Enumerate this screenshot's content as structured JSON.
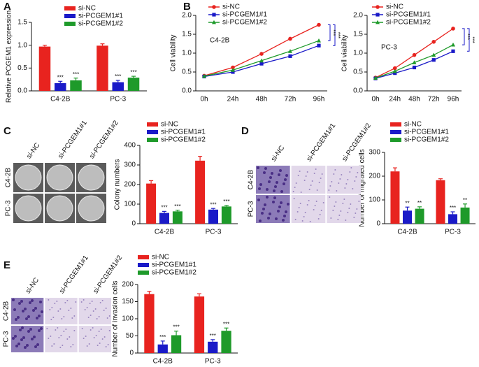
{
  "chart_data": [
    {
      "type": "bar",
      "panel": "A",
      "ylabel": "Relative PCGEM1 expression",
      "categories": [
        "C4-2B",
        "PC-3"
      ],
      "ylim": [
        0,
        1.5
      ],
      "yticks": [
        {
          "value": 0,
          "label": "0.0"
        },
        {
          "value": 0.5,
          "label": "0.5"
        },
        {
          "value": 1,
          "label": "1.0"
        },
        {
          "value": 1.5,
          "label": "1.5"
        }
      ],
      "series": [
        {
          "name": "si-NC",
          "color": "#e8231f",
          "values": [
            0.97,
            0.99
          ],
          "errors": [
            0.03,
            0.04
          ]
        },
        {
          "name": "si-PCGEM1#1",
          "color": "#1a1ac8",
          "values": [
            0.17,
            0.19
          ],
          "errors": [
            0.04,
            0.04
          ],
          "annotations": [
            "***",
            "***"
          ]
        },
        {
          "name": "si-PCGEM1#2",
          "color": "#1e9a2a",
          "values": [
            0.23,
            0.29
          ],
          "errors": [
            0.05,
            0.03
          ],
          "annotations": [
            "***",
            "***"
          ]
        }
      ]
    },
    {
      "type": "line",
      "panel": "B",
      "ylabel": "Cell viability",
      "inset_label": "C4-2B",
      "categories": [
        "0h",
        "24h",
        "48h",
        "72h",
        "96h"
      ],
      "ylim": [
        0,
        2
      ],
      "yticks": [
        {
          "value": 0,
          "label": "0.0"
        },
        {
          "value": 0.5,
          "label": "0.5"
        },
        {
          "value": 1,
          "label": "1.0"
        },
        {
          "value": 1.5,
          "label": "1.5"
        },
        {
          "value": 2,
          "label": "2.0"
        }
      ],
      "annotations": [
        "***",
        "***"
      ],
      "series": [
        {
          "name": "si-NC",
          "color": "#e8231f",
          "values": [
            0.4,
            0.62,
            0.98,
            1.38,
            1.75
          ]
        },
        {
          "name": "si-PCGEM1#1",
          "color": "#1a1ac8",
          "values": [
            0.38,
            0.5,
            0.72,
            0.92,
            1.2
          ]
        },
        {
          "name": "si-PCGEM1#2",
          "color": "#1e9a2a",
          "values": [
            0.39,
            0.55,
            0.8,
            1.05,
            1.33
          ]
        }
      ]
    },
    {
      "type": "line",
      "ylabel": "Cell viability",
      "inset_label": "PC-3",
      "categories": [
        "0h",
        "24h",
        "48h",
        "72h",
        "96h"
      ],
      "ylim": [
        0,
        2
      ],
      "yticks": [
        {
          "value": 0,
          "label": "0.0"
        },
        {
          "value": 0.5,
          "label": "0.5"
        },
        {
          "value": 1,
          "label": "1.0"
        },
        {
          "value": 1.5,
          "label": "1.5"
        },
        {
          "value": 2,
          "label": "2.0"
        }
      ],
      "annotations": [
        "***",
        "***"
      ],
      "series": [
        {
          "name": "si-NC",
          "color": "#e8231f",
          "values": [
            0.35,
            0.6,
            0.95,
            1.3,
            1.65
          ]
        },
        {
          "name": "si-PCGEM1#1",
          "color": "#1a1ac8",
          "values": [
            0.33,
            0.47,
            0.62,
            0.82,
            1.05
          ]
        },
        {
          "name": "si-PCGEM1#2",
          "color": "#1e9a2a",
          "values": [
            0.34,
            0.52,
            0.75,
            0.95,
            1.22
          ]
        }
      ]
    },
    {
      "type": "bar",
      "panel": "C",
      "ylabel": "Colony numbers",
      "image_columns": [
        "si-NC",
        "si-PCGEM1#1",
        "si-PCGEM1#2"
      ],
      "image_rows": [
        "C4-2B",
        "PC-3"
      ],
      "categories": [
        "C4-2B",
        "PC-3"
      ],
      "ylim": [
        0,
        400
      ],
      "yticks": [
        0,
        100,
        200,
        300,
        400
      ],
      "series": [
        {
          "name": "si-NC",
          "color": "#e8231f",
          "values": [
            205,
            322
          ],
          "errors": [
            15,
            22
          ]
        },
        {
          "name": "si-PCGEM1#1",
          "color": "#1a1ac8",
          "values": [
            55,
            72
          ],
          "errors": [
            8,
            6
          ]
        },
        {
          "name": "si-PCGEM1#2",
          "color": "#1e9a2a",
          "values": [
            63,
            88
          ],
          "errors": [
            6,
            5
          ]
        }
      ],
      "series_annotations": [
        [
          "***",
          "***"
        ],
        [
          "***",
          "***"
        ]
      ]
    },
    {
      "type": "bar",
      "panel": "D",
      "ylabel": "Number of migrated cells",
      "image_columns": [
        "si-NC",
        "si-PCGEM1#1",
        "si-PCGEM1#2"
      ],
      "image_rows": [
        "C4-2B",
        "PC-3"
      ],
      "categories": [
        "C4-2B",
        "PC-3"
      ],
      "ylim": [
        0,
        300
      ],
      "yticks": [
        0,
        100,
        200,
        300
      ],
      "series": [
        {
          "name": "si-NC",
          "color": "#e8231f",
          "values": [
            220,
            183
          ],
          "errors": [
            15,
            6
          ]
        },
        {
          "name": "si-PCGEM1#1",
          "color": "#1a1ac8",
          "values": [
            55,
            40
          ],
          "errors": [
            15,
            10
          ]
        },
        {
          "name": "si-PCGEM1#2",
          "color": "#1e9a2a",
          "values": [
            63,
            68
          ],
          "errors": [
            8,
            15
          ]
        }
      ],
      "series_annotations": [
        [
          "**",
          "***"
        ],
        [
          "**",
          "**"
        ]
      ]
    },
    {
      "type": "bar",
      "panel": "E",
      "ylabel": "Number of invasion cells",
      "image_columns": [
        "si-NC",
        "si-PCGEM1#1",
        "si-PCGEM1#2"
      ],
      "image_rows": [
        "C4-2B",
        "PC-3"
      ],
      "categories": [
        "C4-2B",
        "PC-3"
      ],
      "ylim": [
        0,
        200
      ],
      "yticks": [
        0,
        50,
        100,
        150,
        200
      ],
      "series": [
        {
          "name": "si-NC",
          "color": "#e8231f",
          "values": [
            172,
            165
          ],
          "errors": [
            8,
            8
          ]
        },
        {
          "name": "si-PCGEM1#1",
          "color": "#1a1ac8",
          "values": [
            25,
            33
          ],
          "errors": [
            10,
            6
          ]
        },
        {
          "name": "si-PCGEM1#2",
          "color": "#1e9a2a",
          "values": [
            52,
            65
          ],
          "errors": [
            12,
            8
          ]
        }
      ],
      "series_annotations": [
        [
          "***",
          "***"
        ],
        [
          "***",
          "***"
        ]
      ]
    }
  ]
}
